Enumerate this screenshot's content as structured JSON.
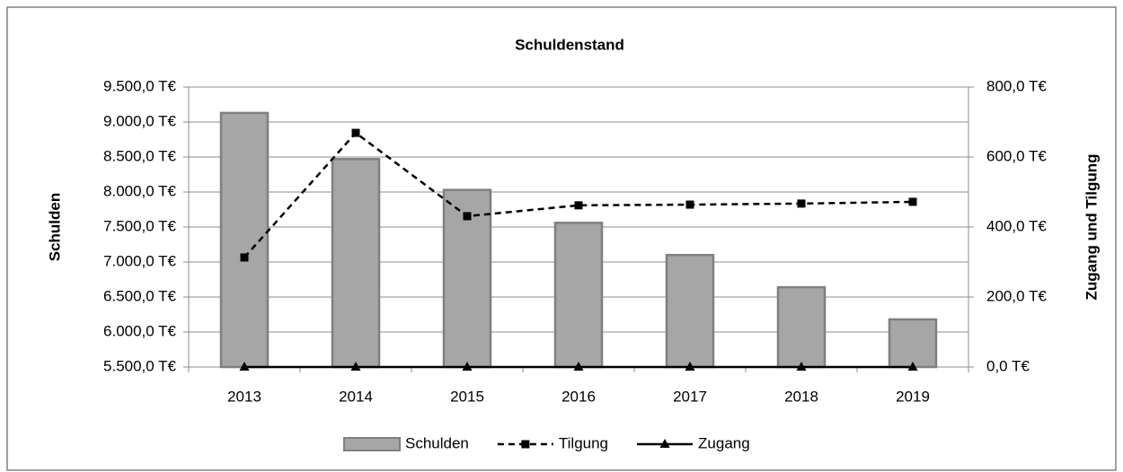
{
  "chart_data": {
    "type": "bar",
    "title": "Schuldenstand",
    "y_label": "Schulden",
    "y2_label": "Zugang und Tilgung",
    "categories": [
      "2013",
      "2014",
      "2015",
      "2016",
      "2017",
      "2018",
      "2019"
    ],
    "series": [
      {
        "name": "Schulden",
        "type": "bar",
        "color": "#a6a6a6",
        "values": [
          9130,
          8470,
          8030,
          7560,
          7100,
          6640,
          6180
        ]
      },
      {
        "name": "Tilgung",
        "type": "line",
        "axis": "y2",
        "color": "#000000",
        "line_style": "dashed",
        "marker": "square",
        "values": [
          313,
          669,
          431,
          462,
          464,
          467,
          472
        ]
      },
      {
        "name": "Zugang",
        "type": "line",
        "axis": "y2",
        "color": "#000000",
        "line_style": "solid",
        "marker": "triangle",
        "values": [
          0,
          0,
          0,
          0,
          0,
          0,
          0
        ]
      }
    ],
    "ylim": [
      5500,
      9500
    ],
    "yticks": [
      {
        "value": 5500,
        "label": "5.500,0 T€"
      },
      {
        "value": 6000,
        "label": "6.000,0 T€"
      },
      {
        "value": 6500,
        "label": "6.500,0 T€"
      },
      {
        "value": 7000,
        "label": "7.000,0 T€"
      },
      {
        "value": 7500,
        "label": "7.500,0 T€"
      },
      {
        "value": 8000,
        "label": "8.000,0 T€"
      },
      {
        "value": 8500,
        "label": "8.500,0 T€"
      },
      {
        "value": 9000,
        "label": "9.000,0 T€"
      },
      {
        "value": 9500,
        "label": "9.500,0 T€"
      }
    ],
    "y2lim": [
      0,
      800
    ],
    "y2ticks": [
      {
        "value": 0,
        "label": "0,0 T€"
      },
      {
        "value": 200,
        "label": "200,0 T€"
      },
      {
        "value": 400,
        "label": "400,0 T€"
      },
      {
        "value": 600,
        "label": "600,0 T€"
      },
      {
        "value": 800,
        "label": "800,0 T€"
      }
    ],
    "grid": true,
    "legend": "bottom"
  }
}
